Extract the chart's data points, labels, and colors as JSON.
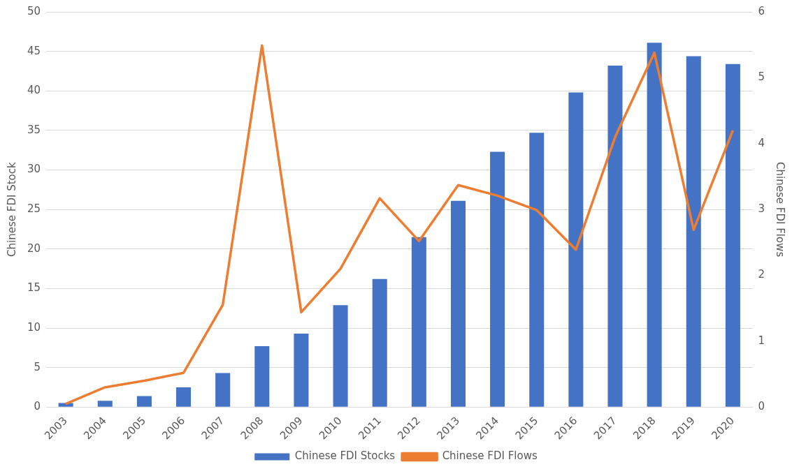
{
  "chart_data": {
    "type": "bar",
    "ylabel": "Chinese FDI Stock",
    "y2label": "Chinese FDI Flows",
    "categories": [
      "2003",
      "2004",
      "2005",
      "2006",
      "2007",
      "2008",
      "2009",
      "2010",
      "2011",
      "2012",
      "2013",
      "2014",
      "2015",
      "2016",
      "2017",
      "2018",
      "2019",
      "2020"
    ],
    "series": [
      {
        "name": "Chinese FDI Stocks",
        "color": "#4472c4",
        "values": [
          0.5,
          0.8,
          1.4,
          2.5,
          4.3,
          7.7,
          9.3,
          12.9,
          16.2,
          21.5,
          26.1,
          32.3,
          34.7,
          39.8,
          43.2,
          46.1,
          44.4,
          43.4
        ]
      },
      {
        "name": "Chinese FDI Flows",
        "type": "line",
        "axis": "y2",
        "color": "#ed7d31",
        "values": [
          0.05,
          0.3,
          0.4,
          0.52,
          1.55,
          5.49,
          1.44,
          2.1,
          3.17,
          2.52,
          3.37,
          3.21,
          2.99,
          2.39,
          4.1,
          5.38,
          2.69,
          4.2
        ]
      }
    ],
    "ylim": [
      0,
      50
    ],
    "yticks": [
      0,
      5,
      10,
      15,
      20,
      25,
      30,
      35,
      40,
      45,
      50
    ],
    "y2lim": [
      0,
      6
    ],
    "y2ticks": [
      0,
      1,
      2,
      3,
      4,
      5,
      6
    ],
    "grid": "y",
    "legend": "bottom",
    "marker": "none",
    "line_style": "solid"
  }
}
